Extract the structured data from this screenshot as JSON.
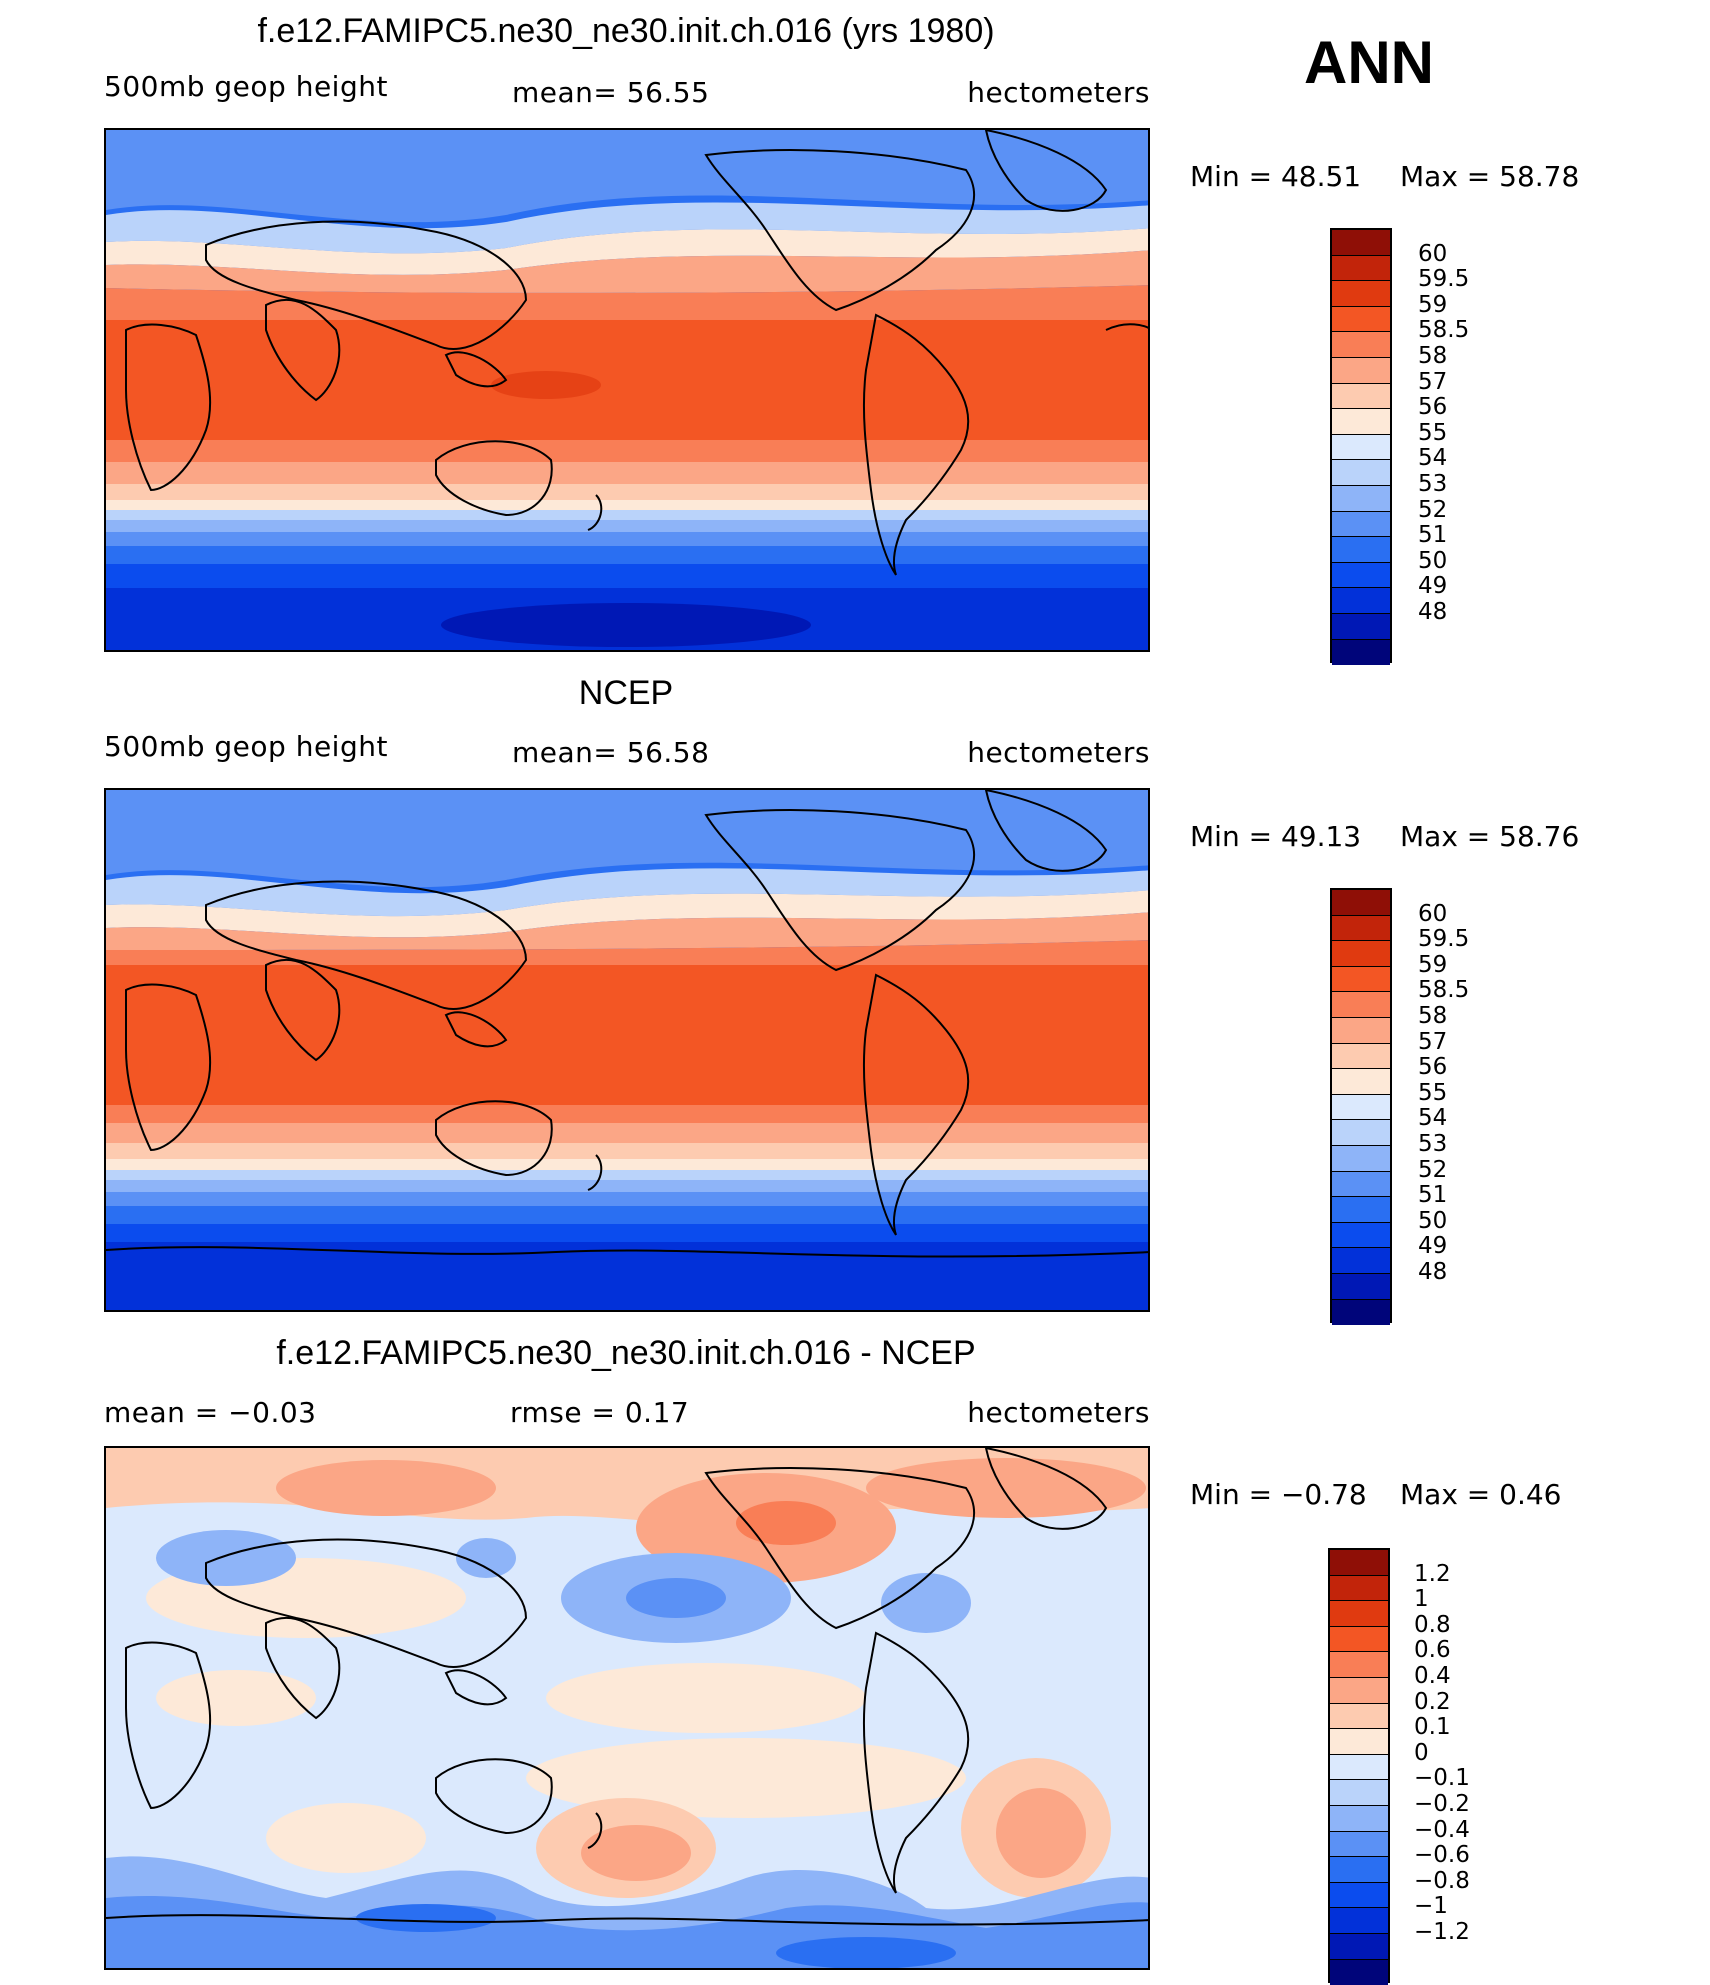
{
  "season": "ANN",
  "panels": [
    {
      "title": "f.e12.FAMIPC5.ne30_ne30.init.ch.016 (yrs 1980)",
      "left_label": "500mb  geop  height",
      "mid_label": "mean=   56.55",
      "units": "hectometers",
      "min_text": "Min  =    48.51",
      "max_text": "Max  =    58.78",
      "colors": [
        "#00057a",
        "#0018b5",
        "#0231d9",
        "#0b4cee",
        "#2a6ff2",
        "#5b91f5",
        "#8eb4f8",
        "#bad3fa",
        "#dbe9fd",
        "#fde9d8",
        "#fdcbb0",
        "#fba686",
        "#f97e56",
        "#f35624",
        "#e03a10",
        "#c2240a",
        "#8f0f06"
      ],
      "levels": [
        "60",
        "59.5",
        "59",
        "58.5",
        "58",
        "57",
        "56",
        "55",
        "54",
        "53",
        "52",
        "51",
        "50",
        "49",
        "48"
      ]
    },
    {
      "title": "NCEP",
      "left_label": "500mb  geop  height",
      "mid_label": "mean=   56.58",
      "units": "hectometers",
      "min_text": "Min  =    49.13",
      "max_text": "Max  =    58.76",
      "colors": [
        "#00057a",
        "#0018b5",
        "#0231d9",
        "#0b4cee",
        "#2a6ff2",
        "#5b91f5",
        "#8eb4f8",
        "#bad3fa",
        "#dbe9fd",
        "#fde9d8",
        "#fdcbb0",
        "#fba686",
        "#f97e56",
        "#f35624",
        "#e03a10",
        "#c2240a",
        "#8f0f06"
      ],
      "levels": [
        "60",
        "59.5",
        "59",
        "58.5",
        "58",
        "57",
        "56",
        "55",
        "54",
        "53",
        "52",
        "51",
        "50",
        "49",
        "48"
      ]
    },
    {
      "title": "f.e12.FAMIPC5.ne30_ne30.init.ch.016 - NCEP",
      "left_label": "mean  =    −0.03",
      "mid_label": "rmse  =     0.17",
      "units": "hectometers",
      "min_text": "Min  =    −0.78",
      "max_text": "Max  =     0.46",
      "colors": [
        "#00057a",
        "#0018b5",
        "#0231d9",
        "#0b4cee",
        "#2a6ff2",
        "#5b91f5",
        "#8eb4f8",
        "#bad3fa",
        "#dbe9fd",
        "#fde9d8",
        "#fdcbb0",
        "#fba686",
        "#f97e56",
        "#f35624",
        "#e03a10",
        "#c2240a",
        "#8f0f06"
      ],
      "levels": [
        "1.2",
        "1",
        "0.8",
        "0.6",
        "0.4",
        "0.2",
        "0.1",
        "0",
        "−0.1",
        "−0.2",
        "−0.4",
        "−0.6",
        "−0.8",
        "−1",
        "−1.2"
      ]
    }
  ]
}
